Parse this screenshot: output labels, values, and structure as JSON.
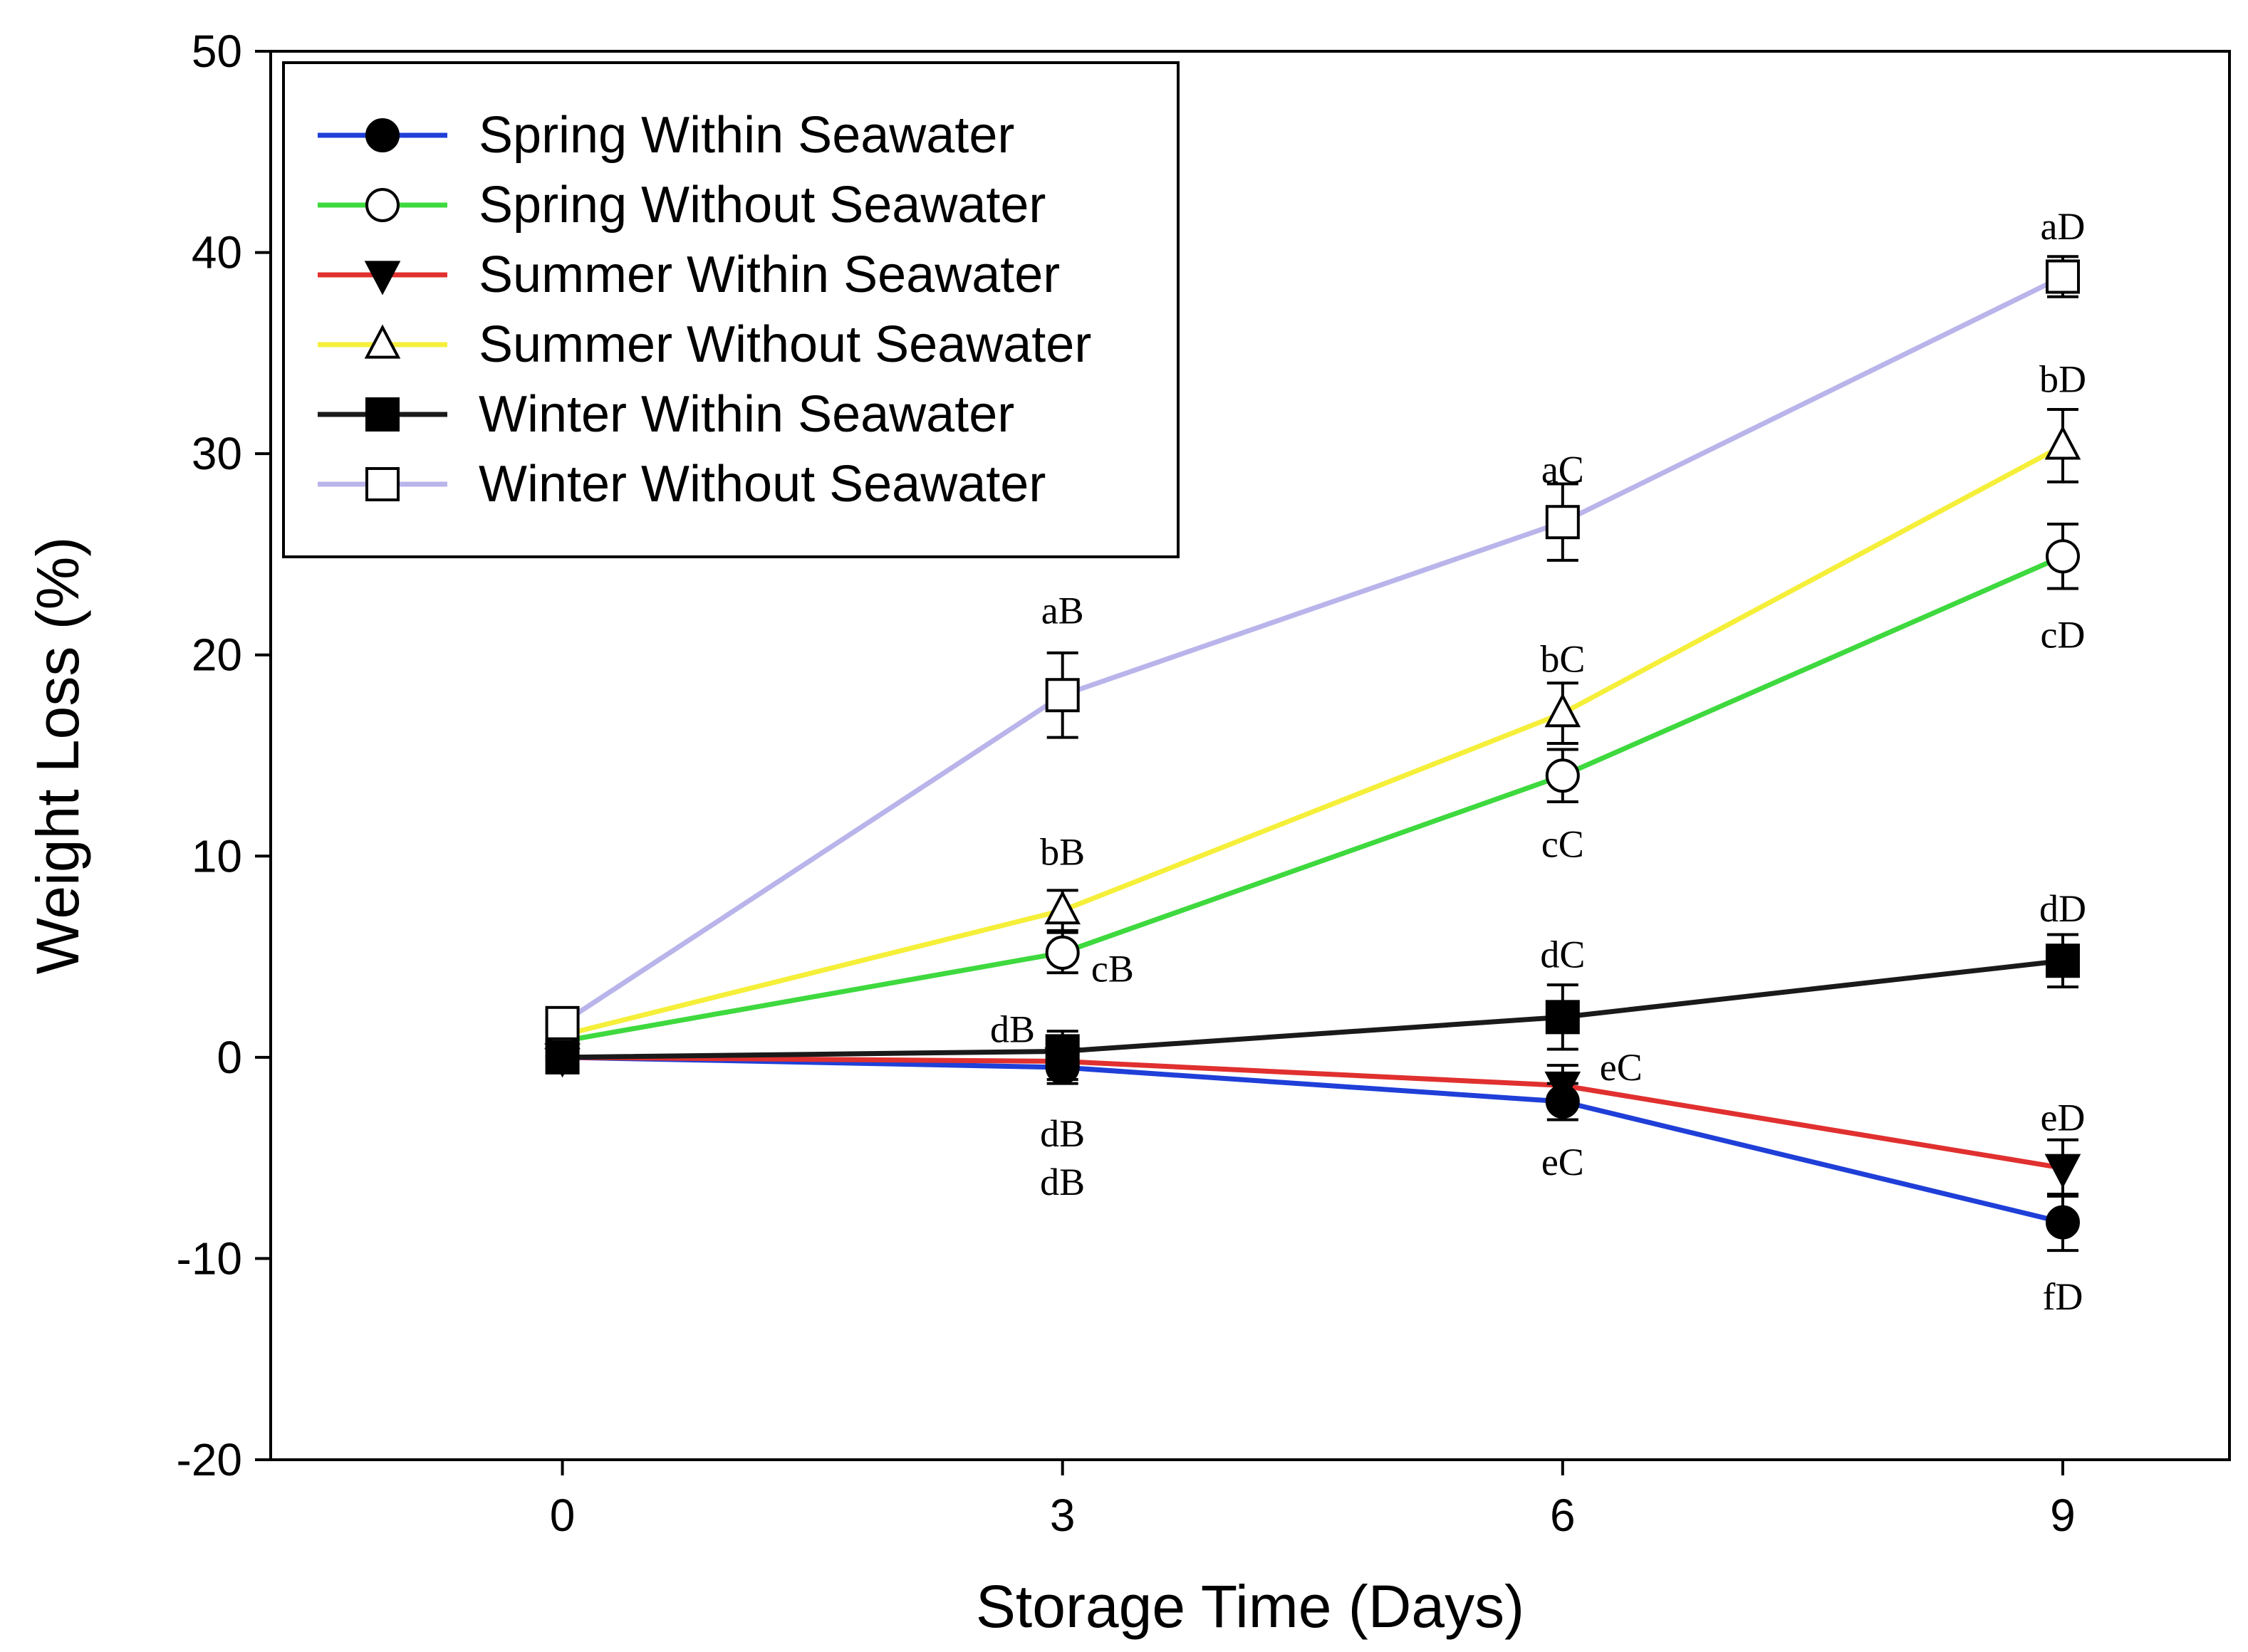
{
  "chart_data": {
    "type": "line",
    "title": "",
    "xlabel": "Storage Time (Days)",
    "ylabel": "Weight Loss (%)",
    "x": [
      0,
      3,
      6,
      9
    ],
    "xticks": [
      0,
      3,
      6,
      9
    ],
    "xlim": [
      -1.75,
      10
    ],
    "ylim": [
      -20,
      50
    ],
    "yticks": [
      -20,
      -10,
      0,
      10,
      20,
      30,
      40,
      50
    ],
    "grid": false,
    "legend_position": "top-left",
    "series": [
      {
        "name": "Spring Within Seawater",
        "color": "#1f3fd8",
        "marker": "circle",
        "filled": true,
        "values": [
          0,
          -0.5,
          -2.2,
          -8.2
        ],
        "errors": [
          0.3,
          0.8,
          0.9,
          1.4
        ]
      },
      {
        "name": "Spring Without Seawater",
        "color": "#3ed93e",
        "marker": "circle",
        "filled": false,
        "values": [
          0.8,
          5.2,
          14.0,
          24.9
        ],
        "errors": [
          0.3,
          1.0,
          1.3,
          1.6
        ]
      },
      {
        "name": "Summer Within Seawater",
        "color": "#e0302f",
        "marker": "triangle-down",
        "filled": true,
        "values": [
          0,
          -0.2,
          -1.4,
          -5.5
        ],
        "errors": [
          0.3,
          0.9,
          1.0,
          1.4
        ]
      },
      {
        "name": "Summer Without Seawater",
        "color": "#f5ef3a",
        "marker": "triangle-up",
        "filled": false,
        "values": [
          1.1,
          7.3,
          17.1,
          30.4
        ],
        "errors": [
          0.3,
          1.0,
          1.5,
          1.8
        ]
      },
      {
        "name": "Winter Within Seawater",
        "color": "#1a1a1a",
        "marker": "square",
        "filled": true,
        "values": [
          0,
          0.3,
          2.0,
          4.8
        ],
        "errors": [
          0.3,
          1.0,
          1.6,
          1.3
        ]
      },
      {
        "name": "Winter Without Seawater",
        "color": "#b9b4ea",
        "marker": "square",
        "filled": false,
        "values": [
          1.7,
          18.0,
          26.6,
          38.8
        ],
        "errors": [
          0.3,
          2.1,
          1.9,
          1.0
        ]
      }
    ],
    "annotations": [
      {
        "text": "aB",
        "x": 3,
        "y": 22.2
      },
      {
        "text": "bB",
        "x": 3,
        "y": 10.2
      },
      {
        "text": "cB",
        "x": 3.3,
        "y": 4.4
      },
      {
        "text": "dB",
        "x": 2.7,
        "y": 1.4
      },
      {
        "text": "dB",
        "x": 3,
        "y": -3.8
      },
      {
        "text": "dB",
        "x": 3,
        "y": -6.2
      },
      {
        "text": "aC",
        "x": 6,
        "y": 29.2
      },
      {
        "text": "bC",
        "x": 6,
        "y": 19.8
      },
      {
        "text": "cC",
        "x": 6,
        "y": 10.6
      },
      {
        "text": "dC",
        "x": 6,
        "y": 5.1
      },
      {
        "text": "eC",
        "x": 6.35,
        "y": -0.5
      },
      {
        "text": "eC",
        "x": 6,
        "y": -5.2
      },
      {
        "text": "aD",
        "x": 9,
        "y": 41.3
      },
      {
        "text": "bD",
        "x": 9,
        "y": 33.7
      },
      {
        "text": "cD",
        "x": 9,
        "y": 21.0
      },
      {
        "text": "dD",
        "x": 9,
        "y": 7.4
      },
      {
        "text": "eD",
        "x": 9,
        "y": -3.0
      },
      {
        "text": "fD",
        "x": 9,
        "y": -11.9
      }
    ]
  }
}
